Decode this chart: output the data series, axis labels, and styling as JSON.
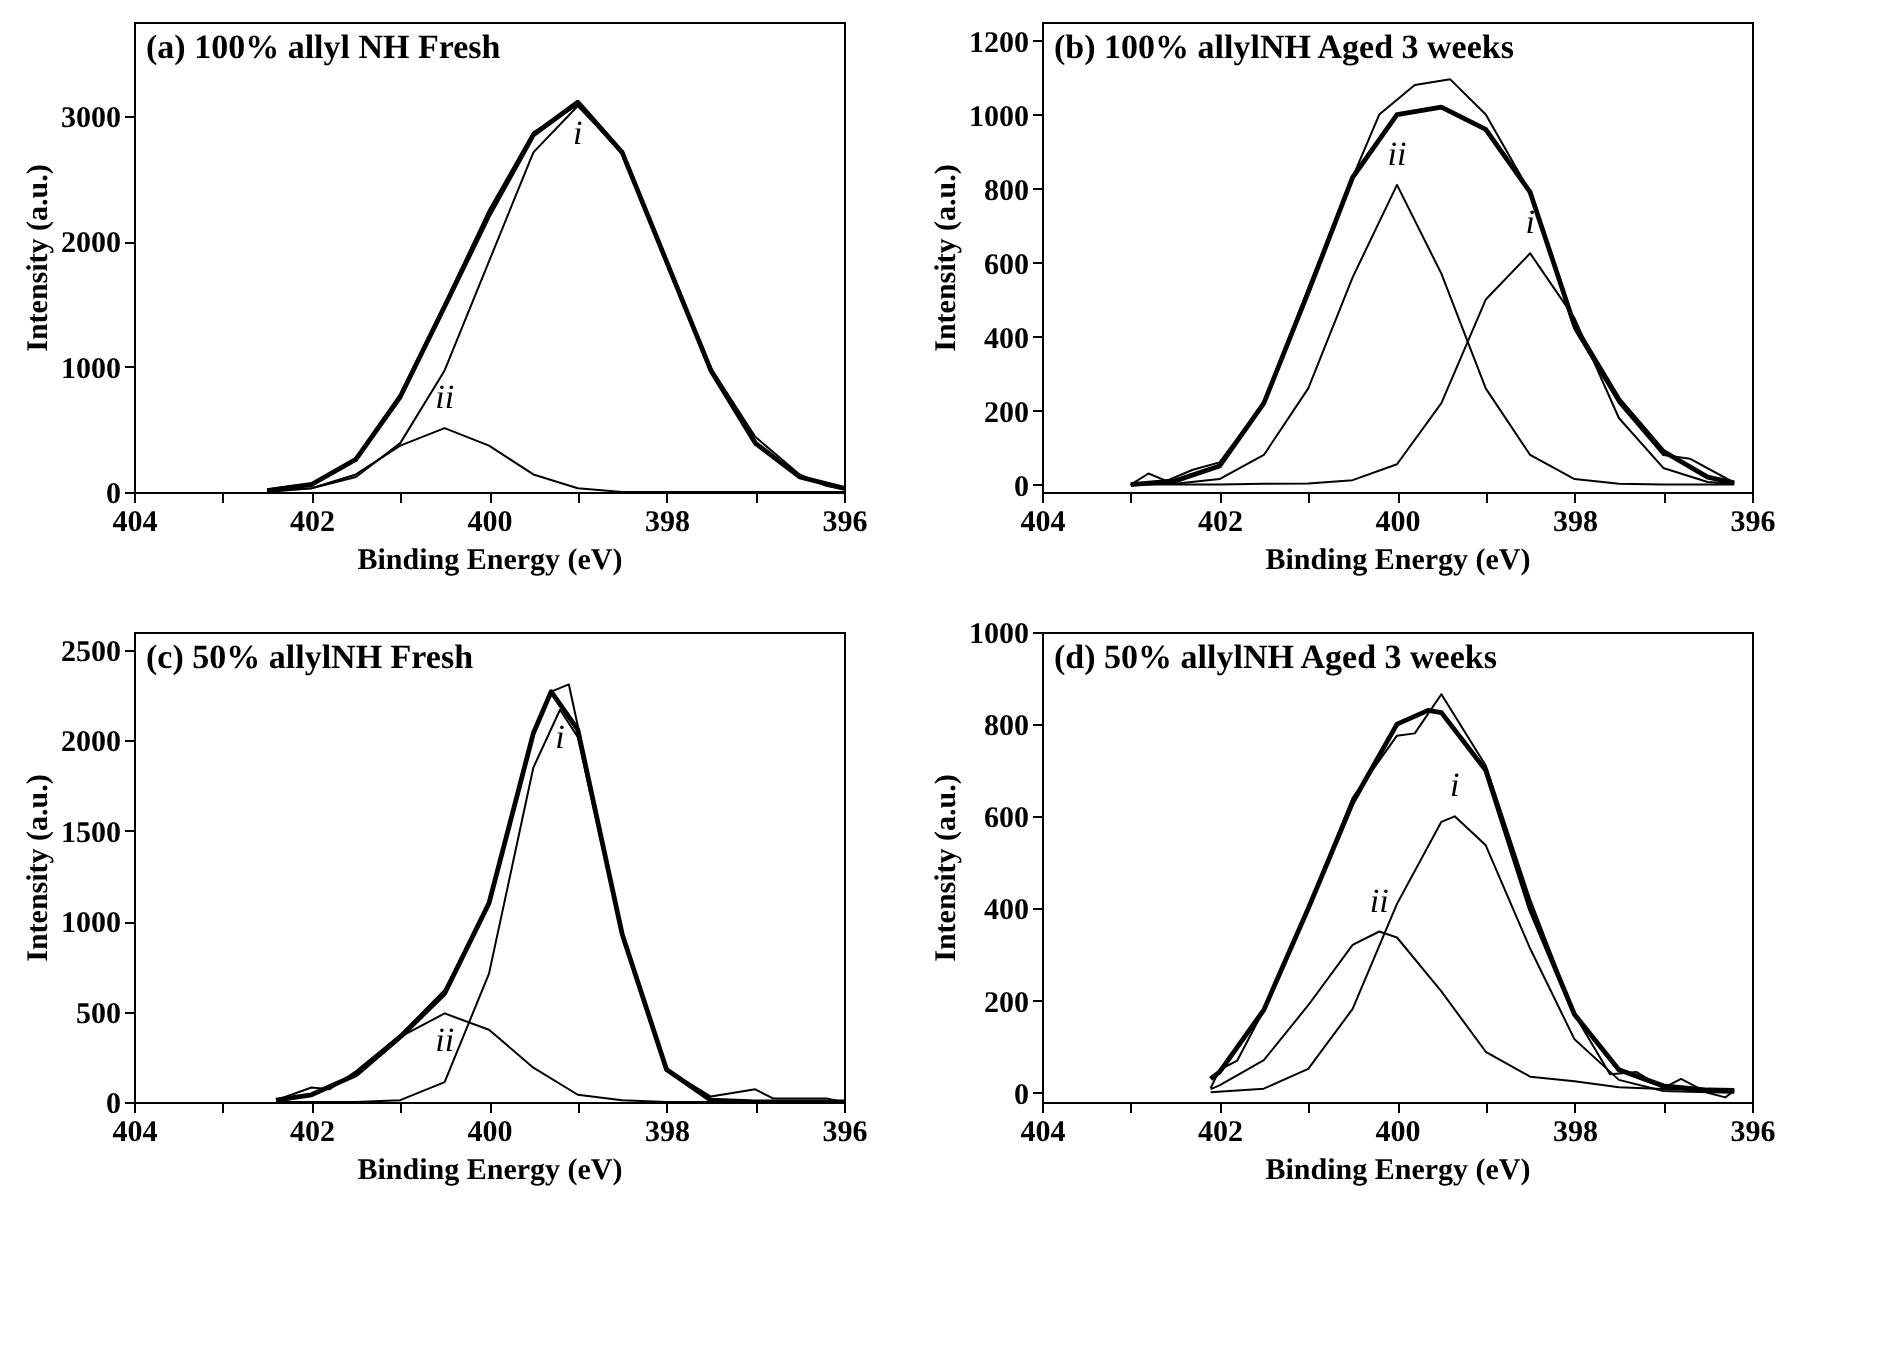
{
  "chart_data": [
    {
      "type": "line",
      "title": "(a) 100% allyl NH Fresh",
      "xlabel": "Binding Energy (eV)",
      "ylabel": "Intensity (a.u.)",
      "xlim": [
        404,
        396
      ],
      "xticks": [
        404,
        {
          "value": 403,
          "label": null
        },
        402,
        {
          "value": 401,
          "label": null
        },
        400,
        {
          "value": 399,
          "label": null
        },
        398,
        {
          "value": 397,
          "label": null
        },
        396
      ],
      "ylim": [
        0,
        3750
      ],
      "yticks": [
        0,
        1000,
        2000,
        3000
      ],
      "grid": false,
      "line_style": "solid",
      "series": [
        {
          "color": "#000000",
          "x": [
            402.5,
            402.2,
            402,
            401.5,
            401,
            400.5,
            400,
            399.5,
            399,
            398.5,
            398,
            397.5,
            397,
            396.5,
            396.2,
            396
          ],
          "values": [
            20,
            50,
            50,
            270,
            780,
            1500,
            2250,
            2870,
            3090,
            2700,
            1850,
            990,
            440,
            140,
            50,
            20
          ]
        },
        {
          "color": "#000000",
          "x": [
            402.5,
            402,
            401.5,
            401,
            400.5,
            400,
            399.5,
            399,
            398.5,
            398,
            397.5,
            397,
            396.5,
            396
          ],
          "values": [
            10,
            60,
            260,
            760,
            1480,
            2210,
            2850,
            3110,
            2710,
            1840,
            970,
            390,
            120,
            30
          ]
        },
        {
          "color": "#000000",
          "x": [
            402.5,
            402,
            401.5,
            401,
            400.5,
            400,
            399.5,
            399,
            398.5,
            398,
            397.5,
            397,
            396.5,
            396
          ],
          "values": [
            10,
            30,
            120,
            390,
            970,
            1840,
            2710,
            3080,
            2710,
            1840,
            970,
            390,
            120,
            30
          ]
        },
        {
          "color": "#000000",
          "x": [
            402.5,
            402,
            401.5,
            401,
            400.5,
            400,
            399.5,
            399,
            398.5,
            398,
            397,
            396
          ],
          "values": [
            0,
            30,
            140,
            370,
            510,
            370,
            140,
            30,
            0,
            0,
            0,
            0
          ]
        }
      ],
      "annotations": [
        {
          "text": "i",
          "x": 399,
          "y": 3080
        },
        {
          "text": "ii",
          "x": 400.5,
          "y": 510
        }
      ]
    },
    {
      "type": "line",
      "title": "(b) 100% allylNH Aged 3 weeks",
      "xlabel": "Binding Energy (eV)",
      "ylabel": "Intensity (a.u.)",
      "xlim": [
        404,
        396
      ],
      "xticks": [
        404,
        {
          "value": 403,
          "label": null
        },
        402,
        {
          "value": 401,
          "label": null
        },
        400,
        {
          "value": 399,
          "label": null
        },
        398,
        {
          "value": 397,
          "label": null
        },
        396
      ],
      "ylim": [
        -20,
        1250
      ],
      "yticks": [
        0,
        200,
        400,
        600,
        800,
        1000,
        1200
      ],
      "grid": false,
      "line_style": "solid",
      "series": [
        {
          "color": "#000000",
          "x": [
            403,
            402.8,
            402.6,
            402.3,
            402,
            401.5,
            401,
            400.5,
            400.2,
            399.8,
            399.4,
            399,
            398.5,
            398,
            397.5,
            397,
            396.7,
            396.2
          ],
          "values": [
            0,
            30,
            10,
            40,
            60,
            220,
            530,
            830,
            1000,
            1080,
            1095,
            1000,
            790,
            420,
            220,
            80,
            70,
            5
          ]
        },
        {
          "color": "#000000",
          "x": [
            403,
            402.5,
            402,
            401.5,
            401,
            400.5,
            400,
            399.5,
            399,
            398.5,
            398,
            397.5,
            397,
            396.5,
            396.2
          ],
          "values": [
            0,
            10,
            50,
            220,
            520,
            830,
            1000,
            1020,
            960,
            790,
            430,
            230,
            90,
            20,
            5
          ]
        },
        {
          "color": "#000000",
          "x": [
            403,
            402,
            401.5,
            401,
            400.5,
            400,
            399.5,
            399,
            398.5,
            398,
            397.5,
            397,
            396.5,
            396.2
          ],
          "values": [
            0,
            0,
            2,
            3,
            12,
            55,
            220,
            500,
            625,
            450,
            180,
            45,
            7,
            2
          ]
        },
        {
          "color": "#000000",
          "x": [
            403,
            402.5,
            402,
            401.5,
            401,
            400.5,
            400,
            399.5,
            399,
            398.5,
            398,
            397.5,
            397,
            396.2
          ],
          "values": [
            0,
            2,
            15,
            80,
            260,
            560,
            810,
            570,
            260,
            80,
            15,
            2,
            0,
            0
          ]
        }
      ],
      "annotations": [
        {
          "text": "ii",
          "x": 400,
          "y": 810
        },
        {
          "text": "i",
          "x": 398.5,
          "y": 625
        }
      ]
    },
    {
      "type": "line",
      "title": "(c) 50% allylNH Fresh",
      "xlabel": "Binding Energy (eV)",
      "ylabel": "Intensity (a.u.)",
      "xlim": [
        404,
        396
      ],
      "xticks": [
        404,
        {
          "value": 403,
          "label": null
        },
        402,
        {
          "value": 401,
          "label": null
        },
        400,
        {
          "value": 399,
          "label": null
        },
        398,
        {
          "value": 397,
          "label": null
        },
        396
      ],
      "ylim": [
        0,
        2600
      ],
      "yticks": [
        0,
        500,
        1000,
        1500,
        2000,
        2500
      ],
      "grid": false,
      "line_style": "solid",
      "series": [
        {
          "color": "#000000",
          "x": [
            402.4,
            402,
            401.8,
            401.5,
            401,
            400.5,
            400,
            399.5,
            399.3,
            399.1,
            398.5,
            398,
            397.5,
            397,
            396.8,
            396.2,
            396
          ],
          "values": [
            10,
            80,
            70,
            170,
            370,
            620,
            1100,
            2050,
            2270,
            2310,
            940,
            180,
            30,
            70,
            20,
            20,
            0
          ]
        },
        {
          "color": "#000000",
          "x": [
            402.4,
            402,
            401.5,
            401,
            400.5,
            400,
            399.5,
            399.3,
            399,
            398.5,
            398,
            397.5,
            397,
            396
          ],
          "values": [
            10,
            40,
            150,
            360,
            600,
            1100,
            2040,
            2270,
            2060,
            930,
            180,
            10,
            0,
            0
          ]
        },
        {
          "color": "#000000",
          "x": [
            402.4,
            401.5,
            401,
            400.5,
            400,
            399.5,
            399.2,
            399,
            398.5,
            398,
            397.5,
            397,
            396
          ],
          "values": [
            0,
            0,
            10,
            110,
            710,
            1850,
            2170,
            2020,
            920,
            180,
            10,
            0,
            0
          ]
        },
        {
          "color": "#000000",
          "x": [
            402.4,
            402,
            401.5,
            401,
            400.5,
            400,
            399.5,
            399,
            398.5,
            398,
            397.5,
            396
          ],
          "values": [
            10,
            40,
            150,
            360,
            490,
            400,
            190,
            40,
            10,
            0,
            0,
            0
          ]
        }
      ],
      "annotations": [
        {
          "text": "i",
          "x": 399.2,
          "y": 2170
        },
        {
          "text": "ii",
          "x": 400.5,
          "y": 490
        }
      ]
    },
    {
      "type": "line",
      "title": "(d) 50% allylNH Aged 3 weeks",
      "xlabel": "Binding Energy (eV)",
      "ylabel": "Intensity (a.u.)",
      "xlim": [
        404,
        396
      ],
      "xticks": [
        404,
        {
          "value": 403,
          "label": null
        },
        402,
        {
          "value": 401,
          "label": null
        },
        400,
        {
          "value": 399,
          "label": null
        },
        398,
        {
          "value": 397,
          "label": null
        },
        396
      ],
      "ylim": [
        -20,
        1000
      ],
      "yticks": [
        0,
        200,
        400,
        600,
        800,
        1000
      ],
      "grid": false,
      "line_style": "solid",
      "series": [
        {
          "color": "#000000",
          "x": [
            402.1,
            402,
            401.8,
            401.5,
            401,
            400.5,
            400,
            399.8,
            399.5,
            399,
            398.5,
            398,
            397.6,
            397.3,
            397,
            396.8,
            396.5,
            396.3,
            396.2
          ],
          "values": [
            10,
            50,
            70,
            180,
            400,
            640,
            775,
            780,
            865,
            710,
            420,
            170,
            40,
            45,
            10,
            30,
            0,
            -10,
            5
          ]
        },
        {
          "color": "#000000",
          "x": [
            402.1,
            402,
            401.5,
            401,
            400.5,
            400,
            399.65,
            399.5,
            399,
            398.5,
            398,
            397.5,
            397,
            396.5,
            396.2
          ],
          "values": [
            30,
            45,
            180,
            400,
            630,
            800,
            830,
            825,
            700,
            400,
            170,
            50,
            15,
            6,
            5
          ]
        },
        {
          "color": "#000000",
          "x": [
            402.1,
            401.5,
            401,
            400.5,
            400,
            399.5,
            399.35,
            399,
            398.5,
            398,
            397.5,
            397,
            396.5,
            396.2
          ],
          "values": [
            1,
            9,
            52,
            182,
            410,
            588,
            600,
            537,
            313,
            116,
            28,
            4,
            1,
            0
          ]
        },
        {
          "color": "#000000",
          "x": [
            402.1,
            402,
            401.5,
            401,
            400.5,
            400.2,
            400,
            399.5,
            399,
            398.5,
            398,
            397.5,
            397,
            396.5,
            396.2
          ],
          "values": [
            8,
            16,
            71,
            190,
            321,
            350,
            337,
            220,
            89,
            35,
            25,
            12,
            8,
            5,
            5
          ]
        }
      ],
      "annotations": [
        {
          "text": "i",
          "x": 399.35,
          "y": 600
        },
        {
          "text": "ii",
          "x": 400.2,
          "y": 350
        }
      ]
    }
  ]
}
